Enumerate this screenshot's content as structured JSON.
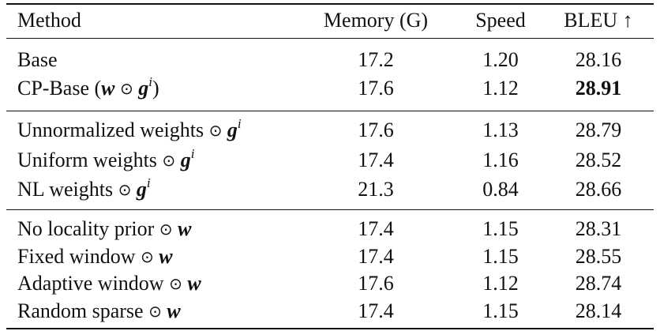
{
  "header": {
    "method": "Method",
    "memory": "Memory (G)",
    "speed": "Speed",
    "bleu": "BLEU ↑"
  },
  "groups": [
    [
      {
        "method": "Base",
        "memory": "17.2",
        "speed": "1.20",
        "bleu": "28.16"
      },
      {
        "method_parts": {
          "prefix": "CP-Base (",
          "w": "w",
          "odot": "⊙",
          "g": "g",
          "sup": "i",
          "suffix": ")"
        },
        "memory": "17.6",
        "speed": "1.12",
        "bleu": "28.91",
        "bleu_bold": true
      }
    ],
    [
      {
        "method": "Unnormalized weights",
        "symbol": "g",
        "sup": "i",
        "memory": "17.6",
        "speed": "1.13",
        "bleu": "28.79"
      },
      {
        "method": "Uniform weights",
        "symbol": "g",
        "sup": "i",
        "memory": "17.4",
        "speed": "1.16",
        "bleu": "28.52"
      },
      {
        "method": "NL weights",
        "symbol": "g",
        "sup": "i",
        "memory": "21.3",
        "speed": "0.84",
        "bleu": "28.66"
      }
    ],
    [
      {
        "method": "No locality prior",
        "symbol": "w",
        "memory": "17.4",
        "speed": "1.15",
        "bleu": "28.31"
      },
      {
        "method": "Fixed window",
        "symbol": "w",
        "memory": "17.4",
        "speed": "1.15",
        "bleu": "28.55"
      },
      {
        "method": "Adaptive window",
        "symbol": "w",
        "memory": "17.6",
        "speed": "1.12",
        "bleu": "28.74"
      },
      {
        "method": "Random sparse",
        "symbol": "w",
        "memory": "17.4",
        "speed": "1.15",
        "bleu": "28.14"
      }
    ]
  ],
  "odot": "⊙"
}
